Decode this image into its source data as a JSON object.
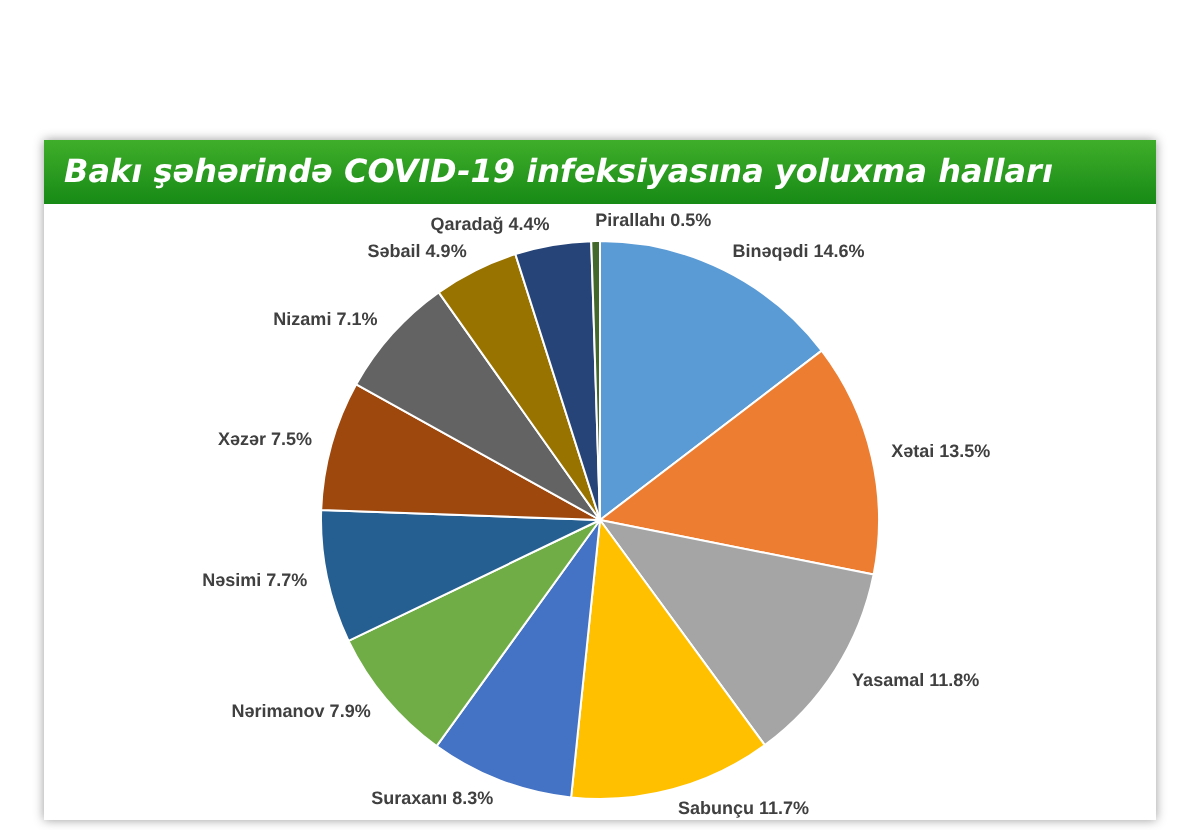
{
  "chart_data": {
    "type": "pie",
    "title": "Bakı şəhərində COVID-19 infeksiyasına yoluxma halları",
    "categories": [
      "Binəqədi",
      "Xətai",
      "Yasamal",
      "Sabunçu",
      "Suraxanı",
      "Nərimanov",
      "Nəsimi",
      "Xəzər",
      "Nizami",
      "Səbail",
      "Qaradağ",
      "Pirallahı"
    ],
    "values": [
      14.6,
      13.5,
      11.8,
      11.7,
      8.3,
      7.9,
      7.7,
      7.5,
      7.1,
      4.9,
      4.4,
      0.5
    ],
    "value_labels": [
      "14.6%",
      "13.5%",
      "11.8%",
      "11.7%",
      "8.3%",
      "7.9%",
      "7.7%",
      "7.5%",
      "7.1%",
      "4.9%",
      "4.4%",
      "0.5%"
    ],
    "colors": [
      "#5b9bd5",
      "#ed7d31",
      "#a5a5a5",
      "#ffc000",
      "#4472c4",
      "#70ad47",
      "#255e91",
      "#9e480e",
      "#636363",
      "#997300",
      "#264478",
      "#43682b"
    ],
    "legend": false
  }
}
